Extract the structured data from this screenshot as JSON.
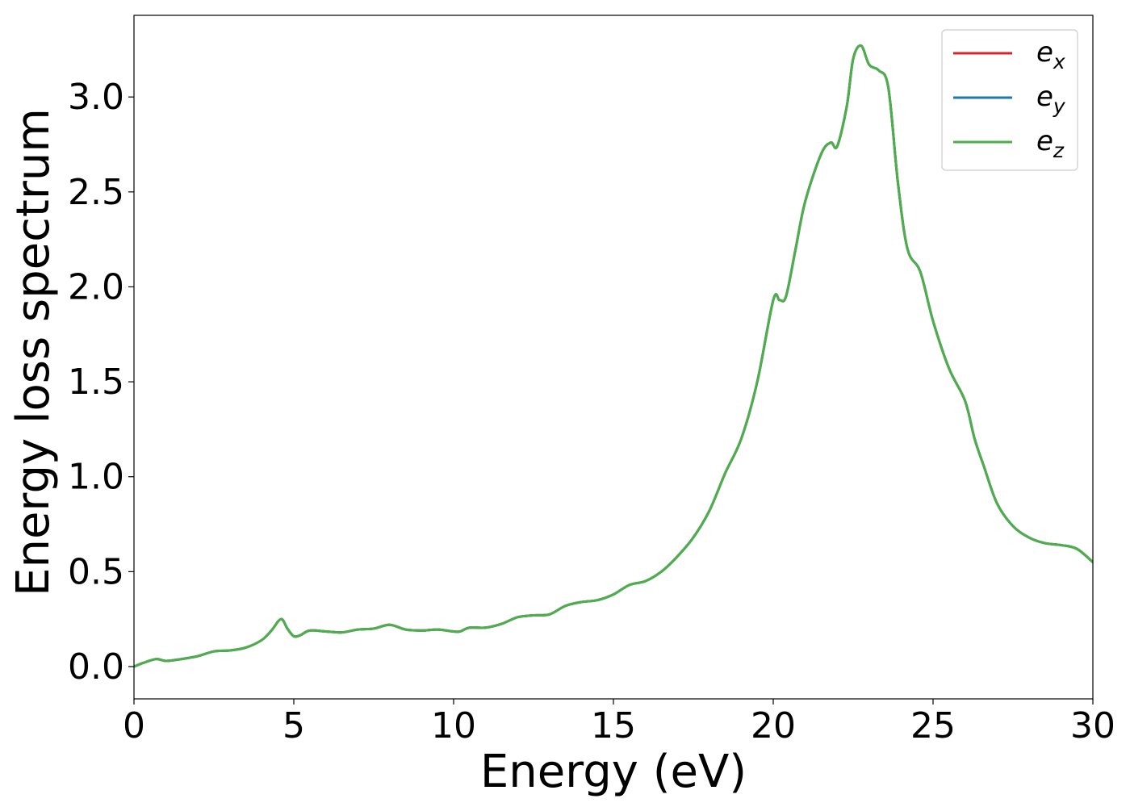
{
  "chart_data": {
    "type": "line",
    "title": "",
    "xlabel": "Energy (eV)",
    "ylabel": "Energy loss spectrum",
    "xlim": [
      0,
      30
    ],
    "ylim": [
      -0.17,
      3.43
    ],
    "xticks": [
      0,
      5,
      10,
      15,
      20,
      25,
      30
    ],
    "xtick_labels": [
      "0",
      "5",
      "10",
      "15",
      "20",
      "25",
      "30"
    ],
    "yticks": [
      0.0,
      0.5,
      1.0,
      1.5,
      2.0,
      2.5,
      3.0
    ],
    "ytick_labels": [
      "0.0",
      "0.5",
      "1.0",
      "1.5",
      "2.0",
      "2.5",
      "3.0"
    ],
    "grid": false,
    "legend_position": "top-right",
    "x": [
      0,
      0.3,
      0.7,
      1.0,
      1.5,
      2.0,
      2.5,
      3.0,
      3.5,
      4.0,
      4.3,
      4.6,
      4.8,
      5.0,
      5.2,
      5.5,
      6.0,
      6.5,
      7.0,
      7.5,
      8.0,
      8.5,
      9.0,
      9.5,
      10.0,
      10.2,
      10.5,
      11.0,
      11.5,
      12.0,
      12.5,
      13.0,
      13.5,
      14.0,
      14.5,
      15.0,
      15.5,
      16.0,
      16.5,
      17.0,
      17.5,
      18.0,
      18.5,
      19.0,
      19.5,
      20.0,
      20.2,
      20.4,
      20.7,
      21.0,
      21.5,
      21.8,
      22.0,
      22.3,
      22.5,
      22.75,
      23.0,
      23.3,
      23.6,
      23.9,
      24.2,
      24.6,
      25.0,
      25.5,
      26.0,
      26.3,
      26.6,
      27.0,
      27.5,
      28.0,
      28.5,
      29.0,
      29.5,
      30.0
    ],
    "series": [
      {
        "name": "e_x",
        "color": "#d62728",
        "values": [
          0.0,
          0.02,
          0.04,
          0.03,
          0.04,
          0.055,
          0.08,
          0.085,
          0.1,
          0.14,
          0.19,
          0.25,
          0.2,
          0.16,
          0.165,
          0.19,
          0.185,
          0.18,
          0.195,
          0.2,
          0.22,
          0.195,
          0.19,
          0.195,
          0.185,
          0.185,
          0.205,
          0.205,
          0.225,
          0.26,
          0.27,
          0.275,
          0.32,
          0.34,
          0.35,
          0.38,
          0.43,
          0.45,
          0.5,
          0.58,
          0.68,
          0.82,
          1.02,
          1.2,
          1.5,
          1.93,
          1.93,
          1.95,
          2.2,
          2.45,
          2.7,
          2.76,
          2.74,
          2.95,
          3.2,
          3.27,
          3.17,
          3.14,
          3.05,
          2.55,
          2.2,
          2.08,
          1.82,
          1.57,
          1.4,
          1.2,
          1.05,
          0.86,
          0.74,
          0.68,
          0.65,
          0.64,
          0.62,
          0.55
        ]
      },
      {
        "name": "e_y",
        "color": "#1f77b4",
        "values": [
          0.0,
          0.02,
          0.04,
          0.03,
          0.04,
          0.055,
          0.08,
          0.085,
          0.1,
          0.14,
          0.19,
          0.25,
          0.2,
          0.16,
          0.165,
          0.19,
          0.185,
          0.18,
          0.195,
          0.2,
          0.22,
          0.195,
          0.19,
          0.195,
          0.185,
          0.185,
          0.205,
          0.205,
          0.225,
          0.26,
          0.27,
          0.275,
          0.32,
          0.34,
          0.35,
          0.38,
          0.43,
          0.45,
          0.5,
          0.58,
          0.68,
          0.82,
          1.02,
          1.2,
          1.5,
          1.93,
          1.93,
          1.95,
          2.2,
          2.45,
          2.7,
          2.76,
          2.74,
          2.95,
          3.2,
          3.27,
          3.17,
          3.14,
          3.05,
          2.55,
          2.2,
          2.08,
          1.82,
          1.57,
          1.4,
          1.2,
          1.05,
          0.86,
          0.74,
          0.68,
          0.65,
          0.64,
          0.62,
          0.55
        ]
      },
      {
        "name": "e_z",
        "color": "#4daf4a",
        "values": [
          0.0,
          0.02,
          0.04,
          0.03,
          0.04,
          0.055,
          0.08,
          0.085,
          0.1,
          0.14,
          0.19,
          0.25,
          0.2,
          0.16,
          0.165,
          0.19,
          0.185,
          0.18,
          0.195,
          0.2,
          0.22,
          0.195,
          0.19,
          0.195,
          0.185,
          0.185,
          0.205,
          0.205,
          0.225,
          0.26,
          0.27,
          0.275,
          0.32,
          0.34,
          0.35,
          0.38,
          0.43,
          0.45,
          0.5,
          0.58,
          0.68,
          0.82,
          1.02,
          1.2,
          1.5,
          1.93,
          1.93,
          1.95,
          2.2,
          2.45,
          2.7,
          2.76,
          2.74,
          2.95,
          3.2,
          3.27,
          3.17,
          3.14,
          3.05,
          2.55,
          2.2,
          2.08,
          1.82,
          1.57,
          1.4,
          1.2,
          1.05,
          0.86,
          0.74,
          0.68,
          0.65,
          0.64,
          0.62,
          0.55
        ]
      }
    ],
    "legend": [
      {
        "base": "e",
        "sub": "x",
        "color": "#d62728"
      },
      {
        "base": "e",
        "sub": "y",
        "color": "#1f77b4"
      },
      {
        "base": "e",
        "sub": "z",
        "color": "#4daf4a"
      }
    ]
  }
}
